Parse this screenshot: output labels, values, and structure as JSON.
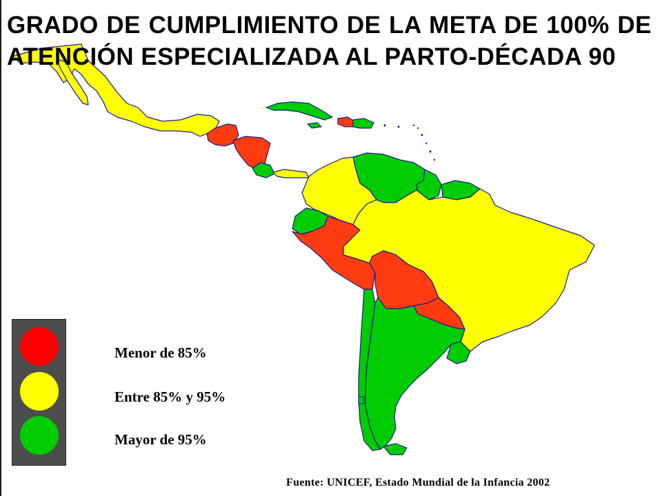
{
  "title": "GRADO DE CUMPLIMIENTO DE LA META DE 100% DE ATENCIÓN ESPECIALIZADA AL PARTO-DÉCADA 90",
  "legend": {
    "items": [
      {
        "label": "Menor de 85%",
        "color": "#ff0000"
      },
      {
        "label": "Entre 85% y 95%",
        "color": "#ffff00"
      },
      {
        "label": "Mayor de 95%",
        "color": "#00cc00"
      }
    ]
  },
  "source": "Fuente: UNICEF, Estado Mundial de la Infancia 2002",
  "colors": {
    "red": "#ff3b12",
    "yellow": "#ffff00",
    "green": "#00cc00",
    "border": "#1a1a8a"
  }
}
